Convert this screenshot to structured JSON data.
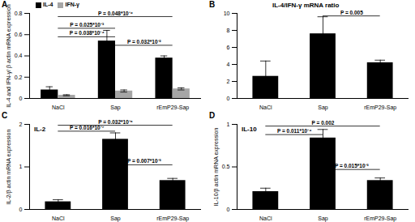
{
  "chart_data": [
    {
      "panel": "A",
      "type": "bar",
      "y_label": "IL-4 and IFN-γ/ β actin mRNA expression",
      "categories": [
        "NaCl",
        "Sap",
        "rEmP29-Sap"
      ],
      "series": [
        {
          "name": "IL-4",
          "color": "#000000",
          "values": [
            0.08,
            0.54,
            0.38
          ],
          "errors": [
            0.03,
            0.1,
            0.02
          ]
        },
        {
          "name": "IFN-γ",
          "color": "#a6a6a6",
          "values": [
            0.03,
            0.07,
            0.09
          ],
          "errors": [
            0.005,
            0.01,
            0.01
          ]
        }
      ],
      "ylim": [
        0,
        0.8
      ],
      "yticks": [
        0,
        0.2,
        0.4,
        0.6,
        0.8
      ],
      "legend": "top-left",
      "annotations": [
        {
          "text": "P = 0.048*10⁻⁴",
          "from": "NaCl",
          "to": "rEmP29-Sap",
          "y": 0.77
        },
        {
          "text": "P = 0.025*10⁻³",
          "from": "NaCl",
          "to": "Sap",
          "y": 0.66
        },
        {
          "text": "P = 0.032*10⁻²",
          "from": "Sap",
          "to": "rEmP29-Sap",
          "y": 0.5
        },
        {
          "text": "P = 0.038*10⁻⁴",
          "from": "NaCl",
          "to": "Sap",
          "y": 0.58
        }
      ]
    },
    {
      "panel": "B",
      "type": "bar",
      "title": "IL-4/IFN-γ mRNA ratio",
      "categories": [
        "NaCl",
        "Sap",
        "rEmP29-Sap"
      ],
      "values": [
        2.6,
        7.6,
        4.2
      ],
      "errors": [
        1.8,
        2.0,
        0.3
      ],
      "color": "#000000",
      "ylim": [
        0,
        10
      ],
      "yticks": [
        0,
        2,
        4,
        6,
        8,
        10
      ],
      "annotations": [
        {
          "text": "P = 0.005",
          "from": "Sap",
          "to": "rEmP29-Sap",
          "y": 9.7
        }
      ]
    },
    {
      "panel": "C",
      "type": "bar",
      "title": "IL-2",
      "y_label": "IL-2/β actin mRNA expression",
      "categories": [
        "NaCl",
        "Sap",
        "rEmP29-Sap"
      ],
      "values": [
        0.18,
        1.65,
        0.68
      ],
      "errors": [
        0.05,
        0.15,
        0.05
      ],
      "color": "#000000",
      "ylim": [
        0,
        2
      ],
      "yticks": [
        0,
        1,
        2
      ],
      "annotations": [
        {
          "text": "P = 0.032*10⁻⁶",
          "from": "NaCl",
          "to": "rEmP29-Sap",
          "y": 1.98
        },
        {
          "text": "P = 0.016*10⁻⁷",
          "from": "NaCl",
          "to": "Sap",
          "y": 1.84
        },
        {
          "text": "P = 0.007*10⁻³",
          "from": "Sap",
          "to": "rEmP29-Sap",
          "y": 1.05
        }
      ]
    },
    {
      "panel": "D",
      "type": "bar",
      "title": "IL-10",
      "y_label": "IL-10/β actin mRNA expression",
      "categories": [
        "NaCl",
        "Sap",
        "rEmP29-Sap"
      ],
      "values": [
        0.21,
        0.84,
        0.34
      ],
      "errors": [
        0.04,
        0.1,
        0.03
      ],
      "color": "#000000",
      "ylim": [
        0,
        1
      ],
      "yticks": [
        0,
        0.5,
        1
      ],
      "annotations": [
        {
          "text": "P = 0.002",
          "from": "NaCl",
          "to": "rEmP29-Sap",
          "y": 0.98
        },
        {
          "text": "P = 0.011*10⁻⁴",
          "from": "NaCl",
          "to": "Sap",
          "y": 0.88
        },
        {
          "text": "P = 0.015*10⁻³",
          "from": "Sap",
          "to": "rEmP29-Sap",
          "y": 0.47
        }
      ]
    }
  ]
}
